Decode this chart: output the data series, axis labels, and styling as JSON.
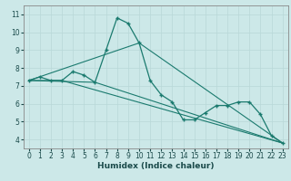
{
  "xlabel": "Humidex (Indice chaleur)",
  "ylabel": "",
  "xlim": [
    -0.5,
    23.5
  ],
  "ylim": [
    3.5,
    11.5
  ],
  "xticks": [
    0,
    1,
    2,
    3,
    4,
    5,
    6,
    7,
    8,
    9,
    10,
    11,
    12,
    13,
    14,
    15,
    16,
    17,
    18,
    19,
    20,
    21,
    22,
    23
  ],
  "yticks": [
    4,
    5,
    6,
    7,
    8,
    9,
    10,
    11
  ],
  "bg_color": "#cce8e8",
  "line_color": "#1a7a6e",
  "series": [
    [
      0,
      7.3
    ],
    [
      1,
      7.5
    ],
    [
      2,
      7.3
    ],
    [
      3,
      7.3
    ],
    [
      4,
      7.8
    ],
    [
      5,
      7.6
    ],
    [
      6,
      7.2
    ],
    [
      7,
      9.0
    ],
    [
      8,
      10.8
    ],
    [
      9,
      10.5
    ],
    [
      10,
      9.4
    ],
    [
      11,
      7.3
    ],
    [
      12,
      6.5
    ],
    [
      13,
      6.1
    ],
    [
      14,
      5.1
    ],
    [
      15,
      5.1
    ],
    [
      16,
      5.5
    ],
    [
      17,
      5.9
    ],
    [
      18,
      5.9
    ],
    [
      19,
      6.1
    ],
    [
      20,
      6.1
    ],
    [
      21,
      5.4
    ],
    [
      22,
      4.2
    ],
    [
      23,
      3.8
    ]
  ],
  "series2": [
    [
      0,
      7.3
    ],
    [
      3,
      7.3
    ],
    [
      23,
      3.8
    ]
  ],
  "series3": [
    [
      0,
      7.3
    ],
    [
      6,
      7.2
    ],
    [
      23,
      3.8
    ]
  ],
  "series4": [
    [
      0,
      7.3
    ],
    [
      10,
      9.4
    ],
    [
      23,
      3.8
    ]
  ],
  "grid_color": "#b8d8d8",
  "spine_color": "#888888",
  "tick_color": "#1a4a4a",
  "xlabel_color": "#1a4a4a",
  "tick_fontsize": 5.5,
  "xlabel_fontsize": 6.5
}
